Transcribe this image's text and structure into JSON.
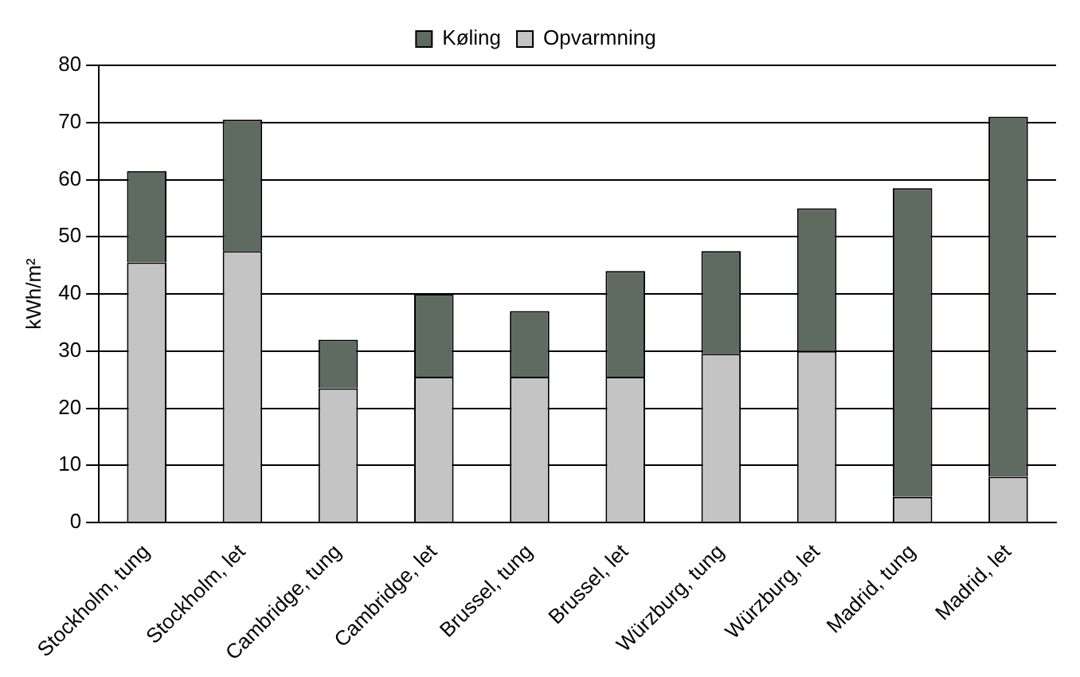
{
  "chart_data": {
    "type": "bar",
    "stacked": true,
    "ylabel": "kWh/m²",
    "categories": [
      "Stockholm, tung",
      "Stockholm, let",
      "Cambridge, tung",
      "Cambridge, let",
      "Brussel, tung",
      "Brussel, let",
      "Würzburg, tung",
      "Würzburg, let",
      "Madrid, tung",
      "Madrid, let"
    ],
    "series": [
      {
        "name": "Opvarmning",
        "color": "#c4c4c4",
        "values": [
          45.5,
          47.5,
          23.5,
          25.5,
          25.5,
          25.5,
          29.5,
          30,
          4.5,
          8
        ]
      },
      {
        "name": "Køling",
        "color": "#5f6b60",
        "values": [
          16,
          23,
          8.5,
          14.5,
          11.5,
          18.5,
          18,
          25,
          54,
          63
        ]
      }
    ],
    "ylim": [
      0,
      80
    ],
    "yticks": [
      0,
      10,
      20,
      30,
      40,
      50,
      60,
      70,
      80
    ],
    "grid": "y",
    "legend": "top"
  }
}
